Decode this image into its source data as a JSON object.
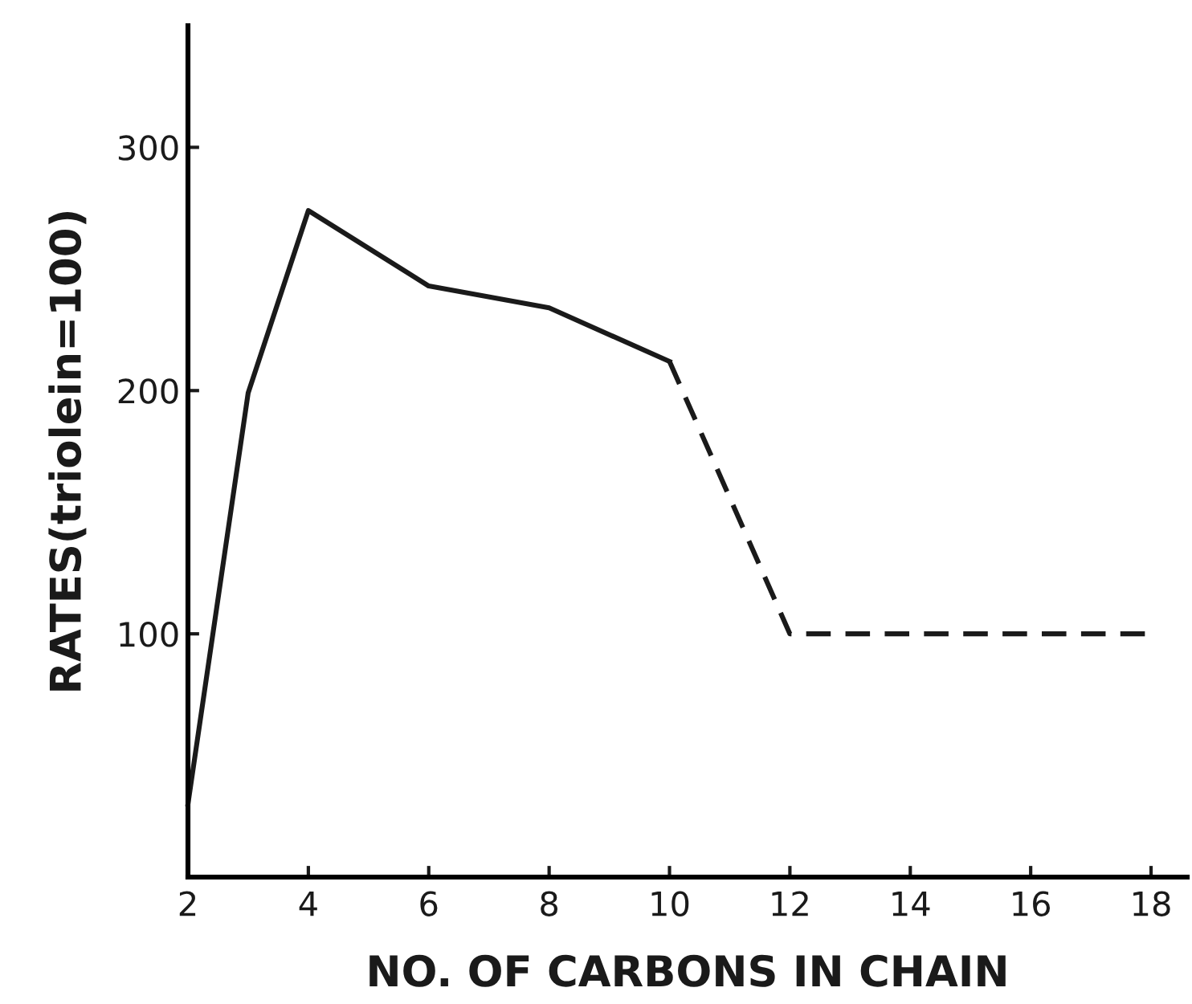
{
  "chart_data": {
    "type": "line",
    "xlabel": "NO. OF CARBONS IN CHAIN",
    "ylabel": "RATES(triolein=100)",
    "xlim": [
      2,
      18.6
    ],
    "xticks": [
      2,
      4,
      6,
      8,
      10,
      12,
      14,
      16,
      18
    ],
    "ylim": [
      0,
      350
    ],
    "yticks": [
      100,
      200,
      300
    ],
    "grid": false,
    "marker": "none",
    "series": [
      {
        "color": "#1a1a1a",
        "line_style": "solid",
        "x": [
          2,
          3,
          4,
          6,
          8,
          10
        ],
        "values": [
          30,
          199,
          274,
          243,
          234,
          212
        ]
      },
      {
        "color": "#1a1a1a",
        "line_style": "dashed",
        "x": [
          10,
          12,
          18
        ],
        "values": [
          212,
          100,
          100
        ]
      }
    ]
  }
}
